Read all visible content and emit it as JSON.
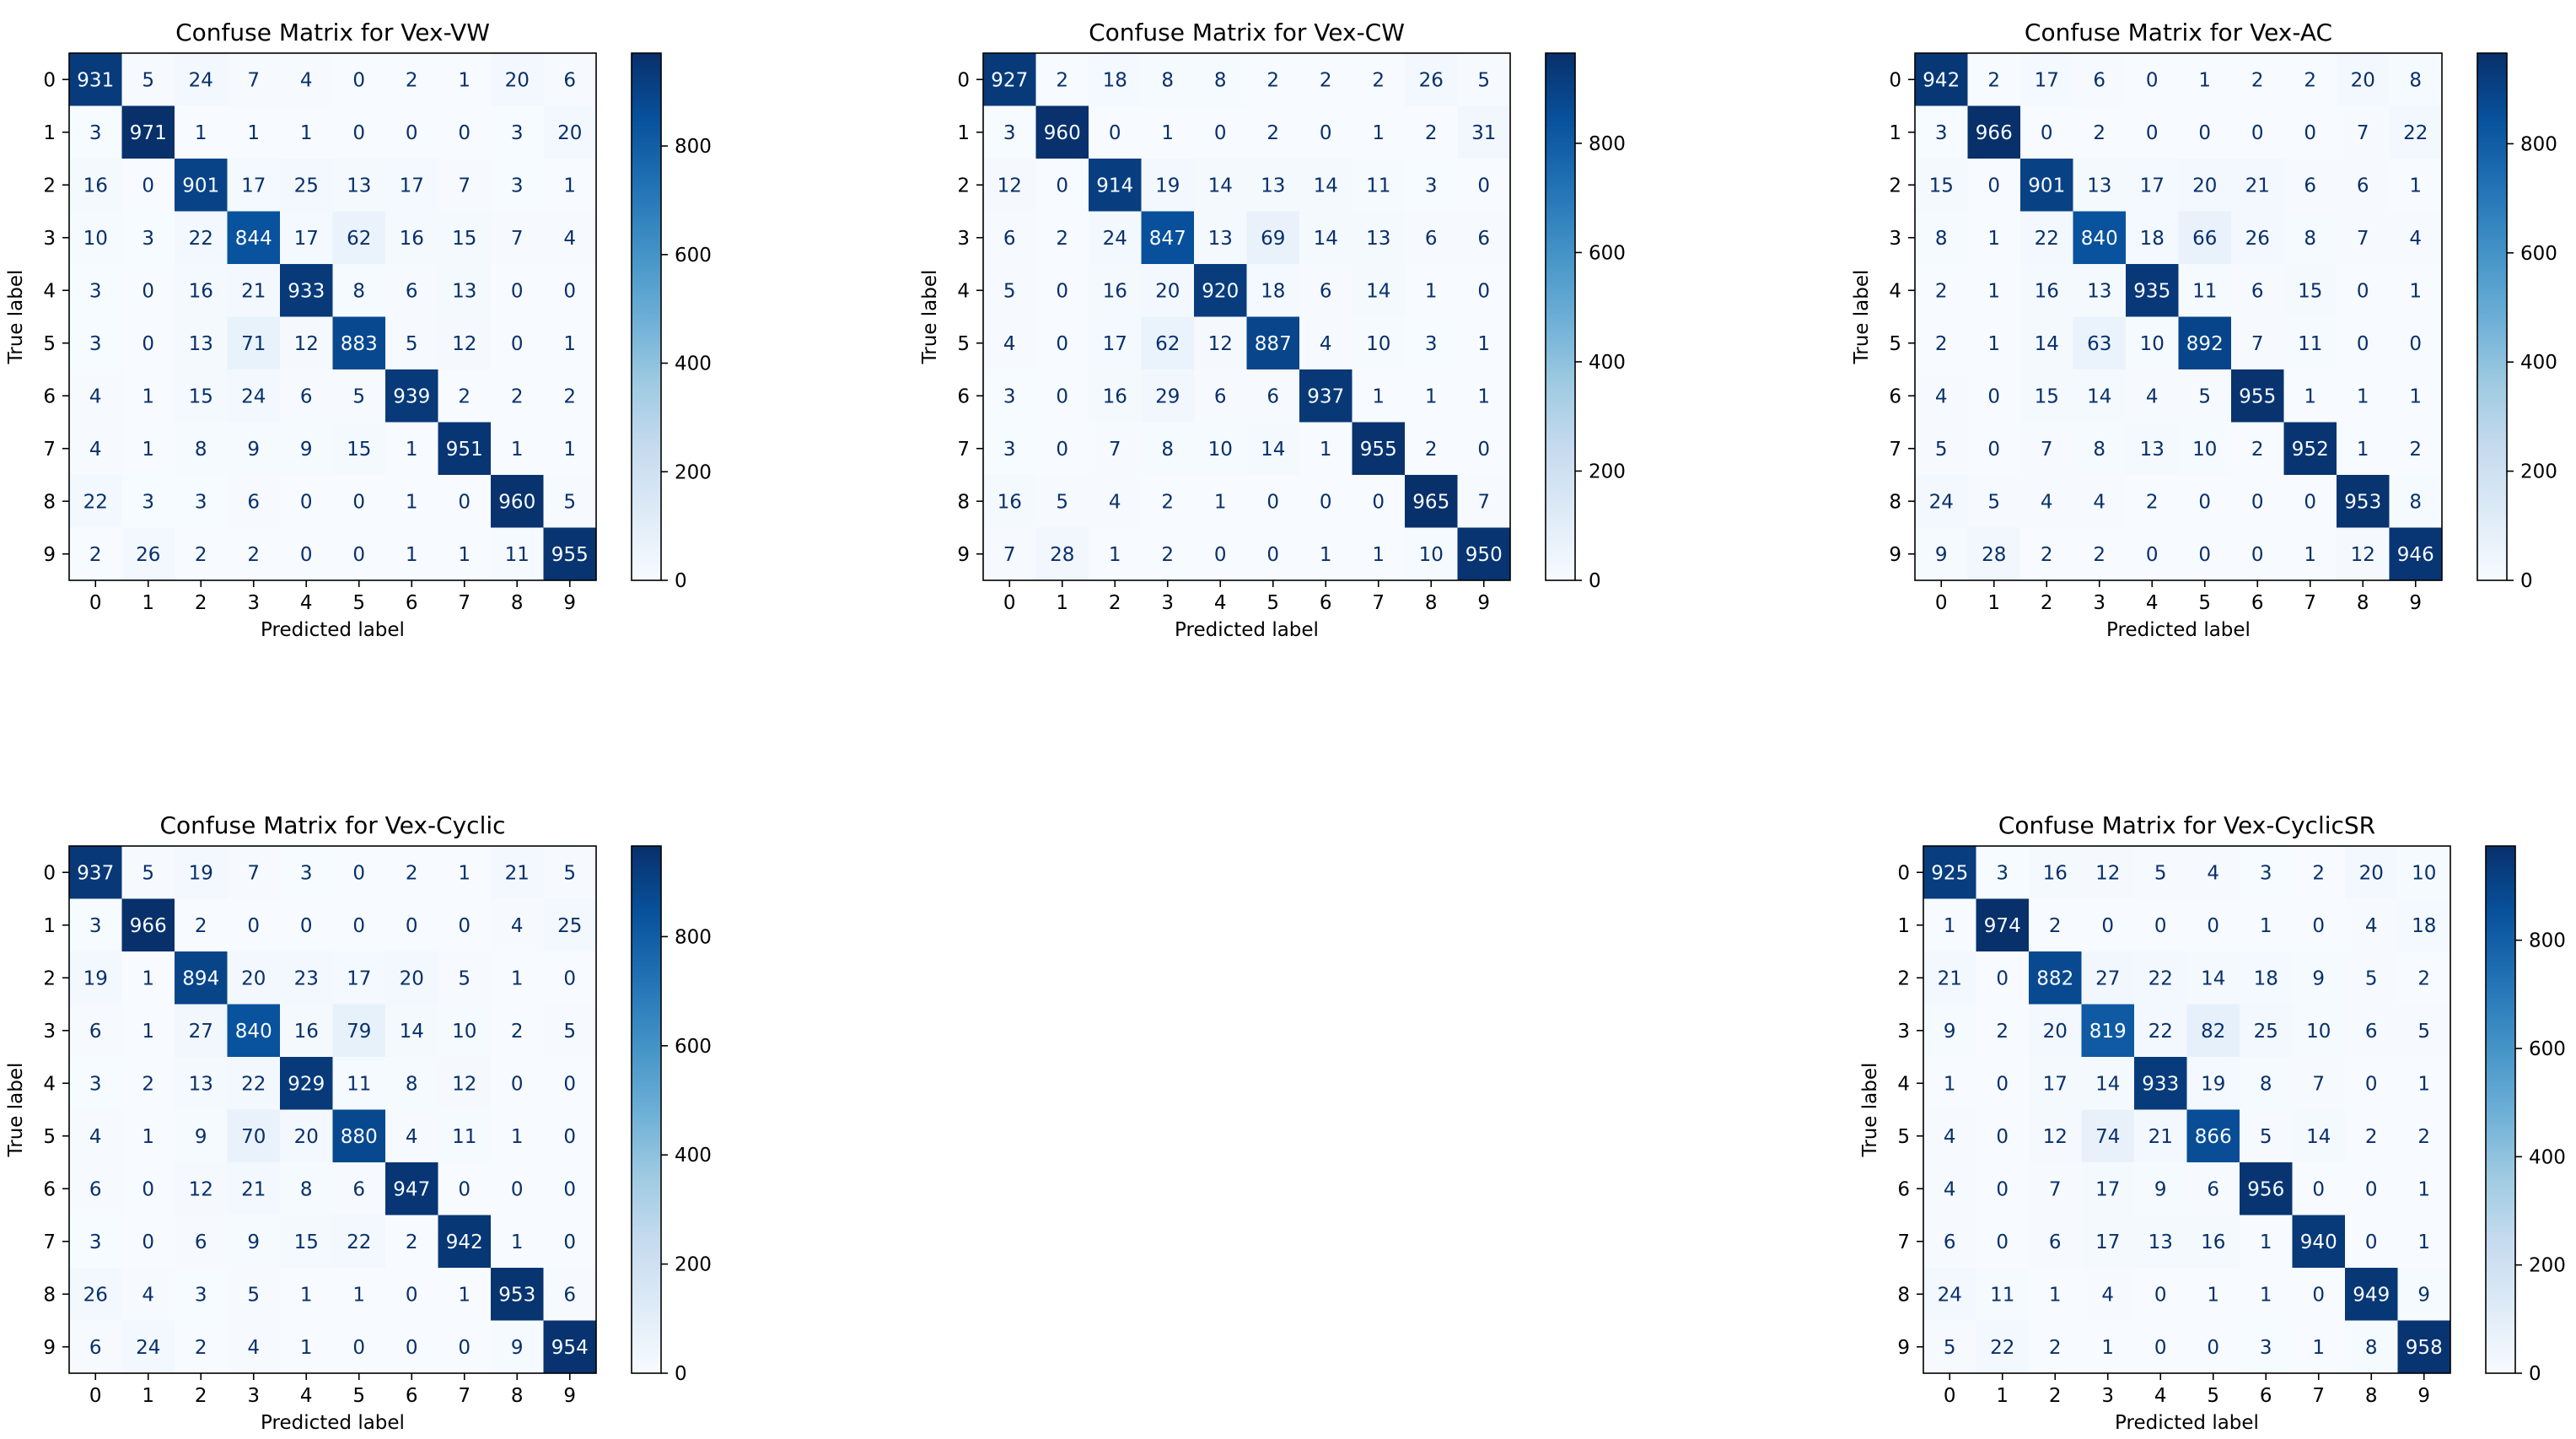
{
  "figure": {
    "colormap_light": "#f7fbff",
    "colormap_dark": "#08306b"
  },
  "chart_data": [
    {
      "type": "heatmap",
      "title": "Confuse Matrix for Vex-VW",
      "xlabel": "Predicted label",
      "ylabel": "True label",
      "x_ticks": [
        "0",
        "1",
        "2",
        "3",
        "4",
        "5",
        "6",
        "7",
        "8",
        "9"
      ],
      "y_ticks": [
        "0",
        "1",
        "2",
        "3",
        "4",
        "5",
        "6",
        "7",
        "8",
        "9"
      ],
      "colorbar_ticks": [
        "0",
        "200",
        "400",
        "600",
        "800"
      ],
      "vmin": 0,
      "vmax": 971,
      "matrix": [
        [
          931,
          5,
          24,
          7,
          4,
          0,
          2,
          1,
          20,
          6
        ],
        [
          3,
          971,
          1,
          1,
          1,
          0,
          0,
          0,
          3,
          20
        ],
        [
          16,
          0,
          901,
          17,
          25,
          13,
          17,
          7,
          3,
          1
        ],
        [
          10,
          3,
          22,
          844,
          17,
          62,
          16,
          15,
          7,
          4
        ],
        [
          3,
          0,
          16,
          21,
          933,
          8,
          6,
          13,
          0,
          0
        ],
        [
          3,
          0,
          13,
          71,
          12,
          883,
          5,
          12,
          0,
          1
        ],
        [
          4,
          1,
          15,
          24,
          6,
          5,
          939,
          2,
          2,
          2
        ],
        [
          4,
          1,
          8,
          9,
          9,
          15,
          1,
          951,
          1,
          1
        ],
        [
          22,
          3,
          3,
          6,
          0,
          0,
          1,
          0,
          960,
          5
        ],
        [
          2,
          26,
          2,
          2,
          0,
          0,
          1,
          1,
          11,
          955
        ]
      ]
    },
    {
      "type": "heatmap",
      "title": "Confuse Matrix for Vex-CW",
      "xlabel": "Predicted label",
      "ylabel": "True label",
      "x_ticks": [
        "0",
        "1",
        "2",
        "3",
        "4",
        "5",
        "6",
        "7",
        "8",
        "9"
      ],
      "y_ticks": [
        "0",
        "1",
        "2",
        "3",
        "4",
        "5",
        "6",
        "7",
        "8",
        "9"
      ],
      "colorbar_ticks": [
        "0",
        "200",
        "400",
        "600",
        "800"
      ],
      "vmin": 0,
      "vmax": 965,
      "matrix": [
        [
          927,
          2,
          18,
          8,
          8,
          2,
          2,
          2,
          26,
          5
        ],
        [
          3,
          960,
          0,
          1,
          0,
          2,
          0,
          1,
          2,
          31
        ],
        [
          12,
          0,
          914,
          19,
          14,
          13,
          14,
          11,
          3,
          0
        ],
        [
          6,
          2,
          24,
          847,
          13,
          69,
          14,
          13,
          6,
          6
        ],
        [
          5,
          0,
          16,
          20,
          920,
          18,
          6,
          14,
          1,
          0
        ],
        [
          4,
          0,
          17,
          62,
          12,
          887,
          4,
          10,
          3,
          1
        ],
        [
          3,
          0,
          16,
          29,
          6,
          6,
          937,
          1,
          1,
          1
        ],
        [
          3,
          0,
          7,
          8,
          10,
          14,
          1,
          955,
          2,
          0
        ],
        [
          16,
          5,
          4,
          2,
          1,
          0,
          0,
          0,
          965,
          7
        ],
        [
          7,
          28,
          1,
          2,
          0,
          0,
          1,
          1,
          10,
          950
        ]
      ]
    },
    {
      "type": "heatmap",
      "title": "Confuse Matrix for Vex-AC",
      "xlabel": "Predicted label",
      "ylabel": "True label",
      "x_ticks": [
        "0",
        "1",
        "2",
        "3",
        "4",
        "5",
        "6",
        "7",
        "8",
        "9"
      ],
      "y_ticks": [
        "0",
        "1",
        "2",
        "3",
        "4",
        "5",
        "6",
        "7",
        "8",
        "9"
      ],
      "colorbar_ticks": [
        "0",
        "200",
        "400",
        "600",
        "800"
      ],
      "vmin": 0,
      "vmax": 966,
      "matrix": [
        [
          942,
          2,
          17,
          6,
          0,
          1,
          2,
          2,
          20,
          8
        ],
        [
          3,
          966,
          0,
          2,
          0,
          0,
          0,
          0,
          7,
          22
        ],
        [
          15,
          0,
          901,
          13,
          17,
          20,
          21,
          6,
          6,
          1
        ],
        [
          8,
          1,
          22,
          840,
          18,
          66,
          26,
          8,
          7,
          4
        ],
        [
          2,
          1,
          16,
          13,
          935,
          11,
          6,
          15,
          0,
          1
        ],
        [
          2,
          1,
          14,
          63,
          10,
          892,
          7,
          11,
          0,
          0
        ],
        [
          4,
          0,
          15,
          14,
          4,
          5,
          955,
          1,
          1,
          1
        ],
        [
          5,
          0,
          7,
          8,
          13,
          10,
          2,
          952,
          1,
          2
        ],
        [
          24,
          5,
          4,
          4,
          2,
          0,
          0,
          0,
          953,
          8
        ],
        [
          9,
          28,
          2,
          2,
          0,
          0,
          0,
          1,
          12,
          946
        ]
      ]
    },
    {
      "type": "heatmap",
      "title": "Confuse Matrix for Vex-Cyclic",
      "xlabel": "Predicted label",
      "ylabel": "True label",
      "x_ticks": [
        "0",
        "1",
        "2",
        "3",
        "4",
        "5",
        "6",
        "7",
        "8",
        "9"
      ],
      "y_ticks": [
        "0",
        "1",
        "2",
        "3",
        "4",
        "5",
        "6",
        "7",
        "8",
        "9"
      ],
      "colorbar_ticks": [
        "0",
        "200",
        "400",
        "600",
        "800"
      ],
      "vmin": 0,
      "vmax": 966,
      "matrix": [
        [
          937,
          5,
          19,
          7,
          3,
          0,
          2,
          1,
          21,
          5
        ],
        [
          3,
          966,
          2,
          0,
          0,
          0,
          0,
          0,
          4,
          25
        ],
        [
          19,
          1,
          894,
          20,
          23,
          17,
          20,
          5,
          1,
          0
        ],
        [
          6,
          1,
          27,
          840,
          16,
          79,
          14,
          10,
          2,
          5
        ],
        [
          3,
          2,
          13,
          22,
          929,
          11,
          8,
          12,
          0,
          0
        ],
        [
          4,
          1,
          9,
          70,
          20,
          880,
          4,
          11,
          1,
          0
        ],
        [
          6,
          0,
          12,
          21,
          8,
          6,
          947,
          0,
          0,
          0
        ],
        [
          3,
          0,
          6,
          9,
          15,
          22,
          2,
          942,
          1,
          0
        ],
        [
          26,
          4,
          3,
          5,
          1,
          1,
          0,
          1,
          953,
          6
        ],
        [
          6,
          24,
          2,
          4,
          1,
          0,
          0,
          0,
          9,
          954
        ]
      ]
    },
    {
      "type": "heatmap",
      "title": "Confuse Matrix for Vex-CyclicSR",
      "xlabel": "Predicted label",
      "ylabel": "True label",
      "x_ticks": [
        "0",
        "1",
        "2",
        "3",
        "4",
        "5",
        "6",
        "7",
        "8",
        "9"
      ],
      "y_ticks": [
        "0",
        "1",
        "2",
        "3",
        "4",
        "5",
        "6",
        "7",
        "8",
        "9"
      ],
      "colorbar_ticks": [
        "0",
        "200",
        "400",
        "600",
        "800"
      ],
      "vmin": 0,
      "vmax": 974,
      "matrix": [
        [
          925,
          3,
          16,
          12,
          5,
          4,
          3,
          2,
          20,
          10
        ],
        [
          1,
          974,
          2,
          0,
          0,
          0,
          1,
          0,
          4,
          18
        ],
        [
          21,
          0,
          882,
          27,
          22,
          14,
          18,
          9,
          5,
          2
        ],
        [
          9,
          2,
          20,
          819,
          22,
          82,
          25,
          10,
          6,
          5
        ],
        [
          1,
          0,
          17,
          14,
          933,
          19,
          8,
          7,
          0,
          1
        ],
        [
          4,
          0,
          12,
          74,
          21,
          866,
          5,
          14,
          2,
          2
        ],
        [
          4,
          0,
          7,
          17,
          9,
          6,
          956,
          0,
          0,
          1
        ],
        [
          6,
          0,
          6,
          17,
          13,
          16,
          1,
          940,
          0,
          1
        ],
        [
          24,
          11,
          1,
          4,
          0,
          1,
          1,
          0,
          949,
          9
        ],
        [
          5,
          22,
          2,
          1,
          0,
          0,
          3,
          1,
          8,
          958
        ]
      ]
    }
  ]
}
